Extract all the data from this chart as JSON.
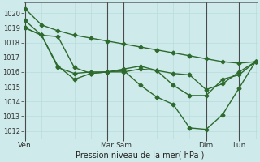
{
  "title": "",
  "xlabel": "Pression niveau de la mer( hPa )",
  "bg_color": "#ceeaea",
  "line_color": "#2d6a2d",
  "grid_minor_color": "#b8dcdc",
  "grid_major_color": "#8fbfbf",
  "vline_color": "#4a4a4a",
  "ylim": [
    1011.5,
    1020.7
  ],
  "yticks": [
    1012,
    1013,
    1014,
    1015,
    1016,
    1017,
    1018,
    1019,
    1020
  ],
  "xlim": [
    -0.05,
    7.05
  ],
  "day_tick_positions": [
    0.0,
    2.5,
    3.0,
    5.5,
    6.5
  ],
  "day_labels": [
    "Ven",
    "Mar",
    "Sam",
    "Dim",
    "Lun"
  ],
  "vline_positions": [
    0.0,
    2.5,
    3.0,
    5.5,
    6.5
  ],
  "series": [
    {
      "x": [
        0.0,
        0.5,
        1.0,
        1.5,
        2.0,
        2.5,
        3.0,
        3.5,
        4.0,
        4.5,
        5.0,
        5.5,
        6.0,
        6.5,
        7.0
      ],
      "y": [
        1020.3,
        1019.2,
        1018.8,
        1018.5,
        1018.3,
        1018.1,
        1017.9,
        1017.7,
        1017.5,
        1017.3,
        1017.1,
        1016.9,
        1016.7,
        1016.6,
        1016.7
      ]
    },
    {
      "x": [
        0.0,
        0.5,
        1.0,
        1.5,
        2.0,
        2.5,
        3.0,
        3.5,
        4.0,
        4.5,
        5.0,
        5.5,
        6.0,
        6.5,
        7.0
      ],
      "y": [
        1019.5,
        1018.5,
        1018.4,
        1016.3,
        1015.9,
        1016.0,
        1016.0,
        1016.2,
        1016.1,
        1015.9,
        1015.8,
        1014.8,
        1015.2,
        1016.0,
        1016.7
      ]
    },
    {
      "x": [
        0.0,
        0.5,
        1.0,
        1.5,
        2.0,
        2.5,
        3.0,
        3.5,
        4.0,
        4.5,
        5.0,
        5.5,
        6.0,
        6.5,
        7.0
      ],
      "y": [
        1019.0,
        1018.5,
        1016.4,
        1015.5,
        1015.9,
        1016.0,
        1016.2,
        1016.4,
        1016.1,
        1015.1,
        1014.4,
        1014.4,
        1015.5,
        1015.8,
        1016.7
      ]
    },
    {
      "x": [
        0.0,
        0.5,
        1.0,
        1.5,
        2.0,
        2.5,
        3.0,
        3.5,
        4.0,
        4.5,
        5.0,
        5.5,
        6.0,
        6.5,
        7.0
      ],
      "y": [
        1019.0,
        1018.5,
        1016.3,
        1015.9,
        1016.0,
        1016.0,
        1016.1,
        1015.1,
        1014.3,
        1013.8,
        1012.2,
        1012.1,
        1013.1,
        1014.9,
        1016.7
      ]
    }
  ],
  "markersize": 2.5,
  "linewidth": 1.0
}
